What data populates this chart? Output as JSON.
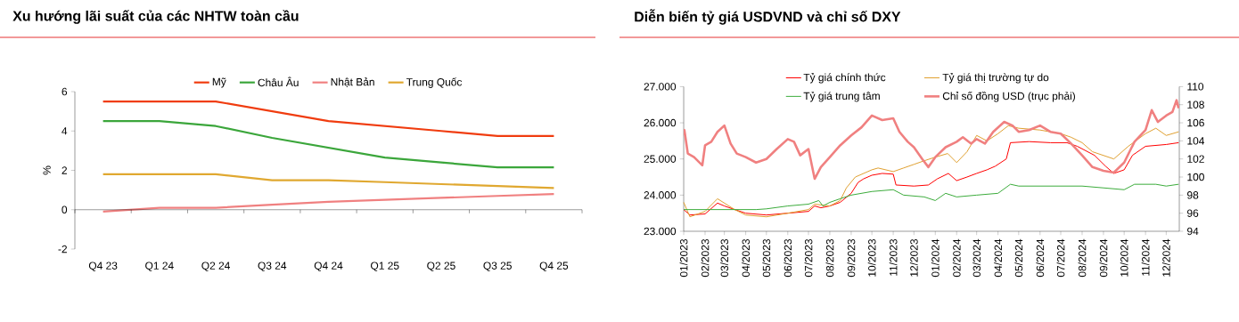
{
  "chart_data": [
    {
      "type": "line",
      "title": "Xu hướng lãi suất của các NHTW toàn cầu",
      "ylabel": "%",
      "legend": "top",
      "categories": [
        "Q4 23",
        "Q1 24",
        "Q2 24",
        "Q3 24",
        "Q4 24",
        "Q1 25",
        "Q2 25",
        "Q3 25",
        "Q4 25"
      ],
      "ylim": [
        -2,
        6
      ],
      "yticks": [
        -2,
        0,
        2,
        4,
        6
      ],
      "series": [
        {
          "name": "Mỹ",
          "color": "#f03c0f",
          "values": [
            5.5,
            5.5,
            5.5,
            5.0,
            4.5,
            4.25,
            4.0,
            3.75,
            3.75
          ]
        },
        {
          "name": "Châu Âu",
          "color": "#3ba63b",
          "values": [
            4.5,
            4.5,
            4.25,
            3.65,
            3.15,
            2.65,
            2.4,
            2.15,
            2.15
          ]
        },
        {
          "name": "Nhật Bản",
          "color": "#f08080",
          "values": [
            -0.1,
            0.1,
            0.1,
            0.25,
            0.4,
            0.5,
            0.6,
            0.7,
            0.8
          ]
        },
        {
          "name": "Trung Quốc",
          "color": "#e0a830",
          "values": [
            1.8,
            1.8,
            1.8,
            1.5,
            1.5,
            1.4,
            1.3,
            1.2,
            1.1
          ]
        }
      ]
    },
    {
      "type": "line",
      "title": "Diễn biến tỷ giá USDVND và chỉ số DXY",
      "legend": "top",
      "xlim": [
        "2023-01-01",
        "2024-12-20"
      ],
      "xticks": [
        {
          "value": "2023-01-01",
          "label": "01/2023"
        },
        {
          "value": "2023-02-01",
          "label": "02/2023"
        },
        {
          "value": "2023-03-01",
          "label": "03/2023"
        },
        {
          "value": "2023-04-01",
          "label": "04/2023"
        },
        {
          "value": "2023-05-01",
          "label": "05/2023"
        },
        {
          "value": "2023-06-01",
          "label": "06/2023"
        },
        {
          "value": "2023-07-01",
          "label": "07/2023"
        },
        {
          "value": "2023-08-01",
          "label": "08/2023"
        },
        {
          "value": "2023-09-01",
          "label": "09/2023"
        },
        {
          "value": "2023-10-01",
          "label": "10/2023"
        },
        {
          "value": "2023-11-01",
          "label": "11/2023"
        },
        {
          "value": "2023-12-01",
          "label": "12/2023"
        },
        {
          "value": "2024-01-01",
          "label": "01/2024"
        },
        {
          "value": "2024-02-01",
          "label": "02/2024"
        },
        {
          "value": "2024-03-01",
          "label": "03/2024"
        },
        {
          "value": "2024-04-01",
          "label": "04/2024"
        },
        {
          "value": "2024-05-01",
          "label": "05/2024"
        },
        {
          "value": "2024-06-01",
          "label": "06/2024"
        },
        {
          "value": "2024-07-01",
          "label": "07/2024"
        },
        {
          "value": "2024-08-01",
          "label": "08/2024"
        },
        {
          "value": "2024-09-01",
          "label": "09/2024"
        },
        {
          "value": "2024-10-01",
          "label": "10/2024"
        },
        {
          "value": "2024-11-01",
          "label": "11/2024"
        },
        {
          "value": "2024-12-01",
          "label": "12/2024"
        }
      ],
      "ylim": [
        23000,
        27000
      ],
      "yticks": [
        {
          "value": 23000,
          "label": "23.000"
        },
        {
          "value": 24000,
          "label": "24.000"
        },
        {
          "value": 25000,
          "label": "25.000"
        },
        {
          "value": 26000,
          "label": "26.000"
        },
        {
          "value": 27000,
          "label": "27.000"
        }
      ],
      "y2lim": [
        94,
        110
      ],
      "y2ticks": [
        94,
        96,
        98,
        100,
        102,
        104,
        106,
        108,
        110
      ],
      "series": [
        {
          "name": "Tỷ giá chính thức",
          "color": "#ff0000",
          "x": [
            "2023-01-01",
            "2023-01-10",
            "2023-02-01",
            "2023-02-19",
            "2023-03-01",
            "2023-03-16",
            "2023-04-01",
            "2023-05-01",
            "2023-06-01",
            "2023-07-01",
            "2023-07-10",
            "2023-07-19",
            "2023-08-01",
            "2023-08-16",
            "2023-09-01",
            "2023-09-11",
            "2023-09-19",
            "2023-10-01",
            "2023-10-16",
            "2023-11-01",
            "2023-11-05",
            "2023-12-01",
            "2023-12-22",
            "2024-01-04",
            "2024-01-20",
            "2024-02-01",
            "2024-02-16",
            "2024-03-01",
            "2024-03-16",
            "2024-03-28",
            "2024-04-13",
            "2024-04-19",
            "2024-05-16",
            "2024-06-16",
            "2024-07-10",
            "2024-07-25",
            "2024-08-19",
            "2024-09-04",
            "2024-09-16",
            "2024-10-01",
            "2024-10-13",
            "2024-11-01",
            "2024-12-01",
            "2024-12-19"
          ],
          "values": [
            23600,
            23450,
            23480,
            23780,
            23700,
            23600,
            23500,
            23450,
            23500,
            23550,
            23700,
            23650,
            23700,
            23800,
            24050,
            24350,
            24450,
            24550,
            24600,
            24580,
            24280,
            24250,
            24280,
            24450,
            24600,
            24400,
            24500,
            24600,
            24700,
            24800,
            25000,
            25450,
            25480,
            25450,
            25450,
            25350,
            25100,
            24800,
            24600,
            24700,
            25100,
            25350,
            25400,
            25450
          ]
        },
        {
          "name": "Tỷ giá thị trường tự do",
          "color": "#e0a030",
          "x": [
            "2023-01-01",
            "2023-01-10",
            "2023-02-01",
            "2023-02-19",
            "2023-03-16",
            "2023-04-01",
            "2023-05-01",
            "2023-06-01",
            "2023-07-01",
            "2023-07-10",
            "2023-08-01",
            "2023-08-16",
            "2023-08-25",
            "2023-09-07",
            "2023-10-01",
            "2023-10-10",
            "2023-11-01",
            "2023-11-16",
            "2023-12-01",
            "2023-12-16",
            "2024-01-01",
            "2024-01-19",
            "2024-02-01",
            "2024-02-16",
            "2024-03-01",
            "2024-03-16",
            "2024-04-01",
            "2024-04-16",
            "2024-05-01",
            "2024-06-01",
            "2024-07-01",
            "2024-07-16",
            "2024-08-01",
            "2024-08-16",
            "2024-09-16",
            "2024-10-07",
            "2024-11-01",
            "2024-11-16",
            "2024-12-01",
            "2024-12-19"
          ],
          "values": [
            23800,
            23400,
            23550,
            23900,
            23600,
            23450,
            23400,
            23500,
            23600,
            23750,
            23700,
            23850,
            24200,
            24500,
            24700,
            24750,
            24650,
            24750,
            24850,
            24950,
            25050,
            25150,
            24900,
            25200,
            25650,
            25500,
            25700,
            25920,
            25850,
            25800,
            25700,
            25600,
            25450,
            25200,
            25000,
            25350,
            25700,
            25850,
            25650,
            25750
          ]
        },
        {
          "name": "Tỷ giá trung tâm",
          "color": "#3cac3c",
          "x": [
            "2023-01-01",
            "2023-04-16",
            "2023-05-01",
            "2023-06-01",
            "2023-07-01",
            "2023-07-16",
            "2023-07-22",
            "2023-08-01",
            "2023-08-16",
            "2023-09-01",
            "2023-10-01",
            "2023-11-01",
            "2023-11-16",
            "2023-12-16",
            "2024-01-01",
            "2024-01-16",
            "2024-02-01",
            "2024-03-01",
            "2024-04-01",
            "2024-04-19",
            "2024-05-01",
            "2024-07-01",
            "2024-08-01",
            "2024-09-01",
            "2024-10-01",
            "2024-10-16",
            "2024-11-16",
            "2024-12-01",
            "2024-12-19"
          ],
          "values": [
            23600,
            23600,
            23620,
            23700,
            23750,
            23850,
            23700,
            23800,
            23900,
            24000,
            24100,
            24150,
            24000,
            23950,
            23850,
            24050,
            23950,
            24000,
            24050,
            24300,
            24250,
            24250,
            24250,
            24200,
            24150,
            24300,
            24300,
            24250,
            24300
          ]
        },
        {
          "name": "Chỉ số đồng USD (trục phải)",
          "color": "#f08080",
          "axis": "y2",
          "x": [
            "2023-01-01",
            "2023-01-02",
            "2023-01-07",
            "2023-01-16",
            "2023-01-28",
            "2023-02-01",
            "2023-02-10",
            "2023-02-19",
            "2023-03-01",
            "2023-03-10",
            "2023-03-19",
            "2023-04-01",
            "2023-04-16",
            "2023-05-01",
            "2023-05-16",
            "2023-06-01",
            "2023-06-10",
            "2023-06-19",
            "2023-07-01",
            "2023-07-10",
            "2023-07-19",
            "2023-08-01",
            "2023-08-16",
            "2023-09-01",
            "2023-09-16",
            "2023-10-01",
            "2023-10-16",
            "2023-11-01",
            "2023-11-10",
            "2023-11-22",
            "2023-12-01",
            "2023-12-13",
            "2023-12-22",
            "2024-01-01",
            "2024-01-16",
            "2024-02-01",
            "2024-02-10",
            "2024-02-22",
            "2024-03-01",
            "2024-03-13",
            "2024-03-25",
            "2024-04-10",
            "2024-04-22",
            "2024-05-01",
            "2024-05-16",
            "2024-06-01",
            "2024-06-16",
            "2024-07-01",
            "2024-07-16",
            "2024-08-01",
            "2024-08-16",
            "2024-09-01",
            "2024-09-16",
            "2024-10-01",
            "2024-10-16",
            "2024-11-01",
            "2024-11-10",
            "2024-11-19",
            "2024-12-01",
            "2024-12-10",
            "2024-12-16",
            "2024-12-19"
          ],
          "values": [
            104.6,
            105.2,
            102.6,
            102.2,
            101.3,
            103.5,
            103.9,
            105.0,
            105.7,
            103.7,
            102.6,
            102.2,
            101.6,
            102.0,
            103.1,
            104.2,
            103.9,
            102.4,
            103.1,
            99.8,
            101.1,
            102.2,
            103.5,
            104.6,
            105.5,
            106.8,
            106.3,
            106.5,
            105.0,
            103.9,
            103.3,
            102.0,
            101.1,
            102.2,
            103.3,
            103.9,
            104.4,
            103.7,
            104.2,
            103.7,
            105.0,
            106.1,
            105.7,
            105.0,
            105.2,
            105.7,
            105.0,
            104.8,
            103.7,
            102.4,
            101.1,
            100.7,
            100.5,
            101.6,
            103.9,
            105.2,
            107.4,
            106.1,
            106.8,
            107.2,
            108.5,
            107.6
          ]
        }
      ]
    }
  ]
}
